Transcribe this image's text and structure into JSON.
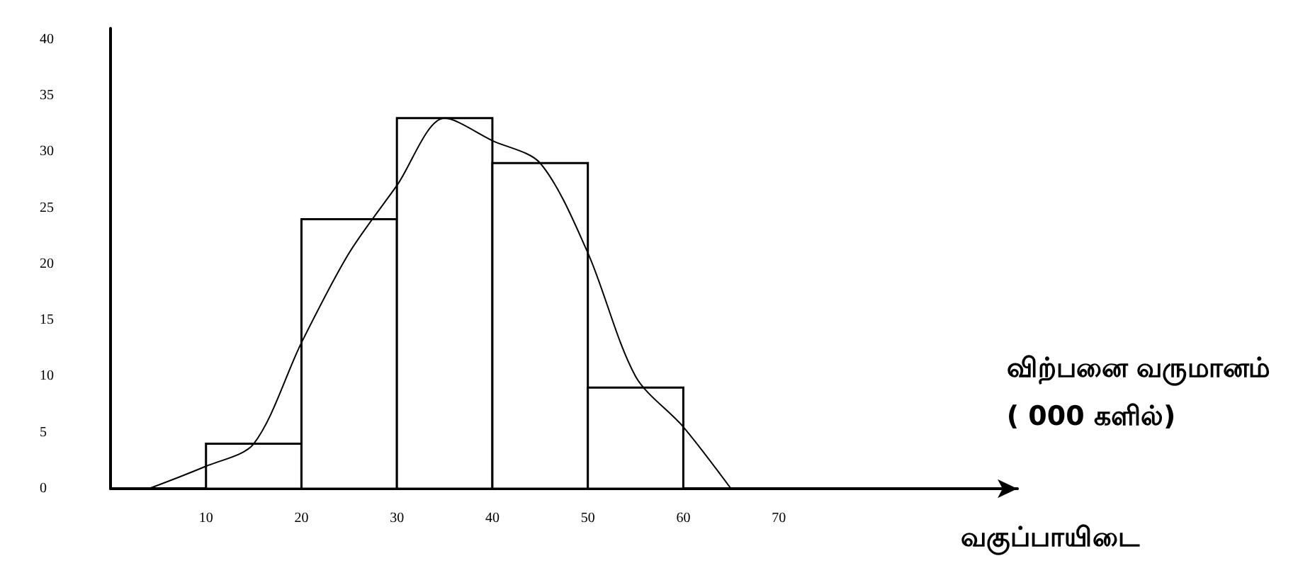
{
  "chart_data": {
    "type": "histogram",
    "xlabel": "வகுப்பாயிடை",
    "annotations": [
      "விற்பனை வருமானம்\n( 000 களில்)"
    ],
    "bins": [
      0,
      10,
      20,
      30,
      40,
      50,
      60,
      70
    ],
    "series": [
      {
        "color": "#ffffff",
        "values": [
          0,
          4,
          24,
          33,
          29,
          9,
          0
        ]
      },
      {
        "type": "line",
        "color": "#000000",
        "x": [
          4,
          10,
          15,
          20,
          25,
          30,
          35,
          40,
          45,
          50,
          55,
          60,
          65
        ],
        "values": [
          0,
          2,
          4,
          13,
          21,
          27,
          33,
          31,
          29,
          21,
          10,
          5.5,
          0
        ]
      }
    ],
    "xlim": [
      0,
      95
    ],
    "xticks": [
      10,
      20,
      30,
      40,
      50,
      60,
      70
    ],
    "ylim": [
      0,
      41
    ],
    "yticks": [
      0,
      5,
      10,
      15,
      20,
      25,
      30,
      35,
      40
    ],
    "grid": false,
    "marker": "none",
    "line_style": "solid"
  }
}
